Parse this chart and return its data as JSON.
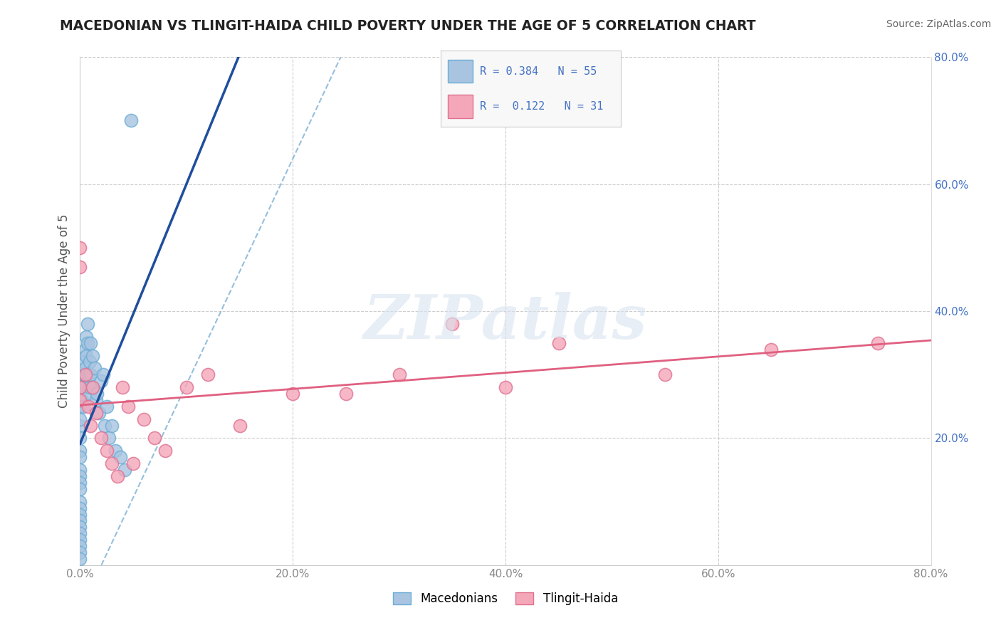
{
  "title": "MACEDONIAN VS TLINGIT-HAIDA CHILD POVERTY UNDER THE AGE OF 5 CORRELATION CHART",
  "source": "Source: ZipAtlas.com",
  "ylabel": "Child Poverty Under the Age of 5",
  "xlim": [
    0.0,
    0.8
  ],
  "ylim": [
    0.0,
    0.8
  ],
  "xtick_labels": [
    "0.0%",
    "20.0%",
    "40.0%",
    "60.0%",
    "80.0%"
  ],
  "xtick_vals": [
    0.0,
    0.2,
    0.4,
    0.6,
    0.8
  ],
  "ytick_labels": [
    "20.0%",
    "40.0%",
    "60.0%",
    "80.0%"
  ],
  "ytick_vals": [
    0.2,
    0.4,
    0.6,
    0.8
  ],
  "macedonian_color": "#a8c4e0",
  "tlingit_color": "#f4a7b9",
  "macedonian_edge": "#6baed6",
  "tlingit_edge": "#e07090",
  "regression_blue_color": "#1f4e9c",
  "regression_pink_color": "#e06080",
  "dashed_line_color": "#7bafd4",
  "background_color": "#ffffff",
  "grid_color": "#cccccc",
  "watermark_color": "#d8e4f0",
  "R_macedonian": "0.384",
  "N_macedonian": "55",
  "R_tlingit": "0.122",
  "N_tlingit": "31",
  "mac_x": [
    0.0,
    0.0,
    0.0,
    0.0,
    0.0,
    0.0,
    0.0,
    0.0,
    0.0,
    0.0,
    0.0,
    0.0,
    0.0,
    0.0,
    0.0,
    0.0,
    0.0,
    0.0,
    0.0,
    0.0,
    0.002,
    0.002,
    0.003,
    0.003,
    0.003,
    0.004,
    0.004,
    0.005,
    0.005,
    0.006,
    0.006,
    0.007,
    0.007,
    0.008,
    0.008,
    0.009,
    0.009,
    0.01,
    0.01,
    0.012,
    0.012,
    0.014,
    0.015,
    0.016,
    0.018,
    0.02,
    0.022,
    0.023,
    0.025,
    0.027,
    0.03,
    0.033,
    0.038,
    0.042,
    0.048
  ],
  "mac_y": [
    0.22,
    0.2,
    0.18,
    0.17,
    0.15,
    0.14,
    0.13,
    0.12,
    0.1,
    0.09,
    0.08,
    0.07,
    0.06,
    0.05,
    0.04,
    0.03,
    0.02,
    0.01,
    0.25,
    0.23,
    0.28,
    0.26,
    0.3,
    0.28,
    0.25,
    0.32,
    0.3,
    0.34,
    0.31,
    0.36,
    0.33,
    0.38,
    0.35,
    0.3,
    0.27,
    0.32,
    0.28,
    0.35,
    0.3,
    0.33,
    0.28,
    0.31,
    0.26,
    0.27,
    0.24,
    0.29,
    0.3,
    0.22,
    0.25,
    0.2,
    0.22,
    0.18,
    0.17,
    0.15,
    0.7
  ],
  "tlin_x": [
    0.0,
    0.0,
    0.0,
    0.0,
    0.005,
    0.008,
    0.01,
    0.012,
    0.015,
    0.02,
    0.025,
    0.03,
    0.035,
    0.04,
    0.045,
    0.05,
    0.06,
    0.07,
    0.08,
    0.1,
    0.12,
    0.15,
    0.2,
    0.25,
    0.3,
    0.35,
    0.4,
    0.45,
    0.55,
    0.65,
    0.75
  ],
  "tlin_y": [
    0.5,
    0.47,
    0.28,
    0.26,
    0.3,
    0.25,
    0.22,
    0.28,
    0.24,
    0.2,
    0.18,
    0.16,
    0.14,
    0.28,
    0.25,
    0.16,
    0.23,
    0.2,
    0.18,
    0.28,
    0.3,
    0.22,
    0.27,
    0.27,
    0.3,
    0.38,
    0.28,
    0.35,
    0.3,
    0.34,
    0.35
  ]
}
